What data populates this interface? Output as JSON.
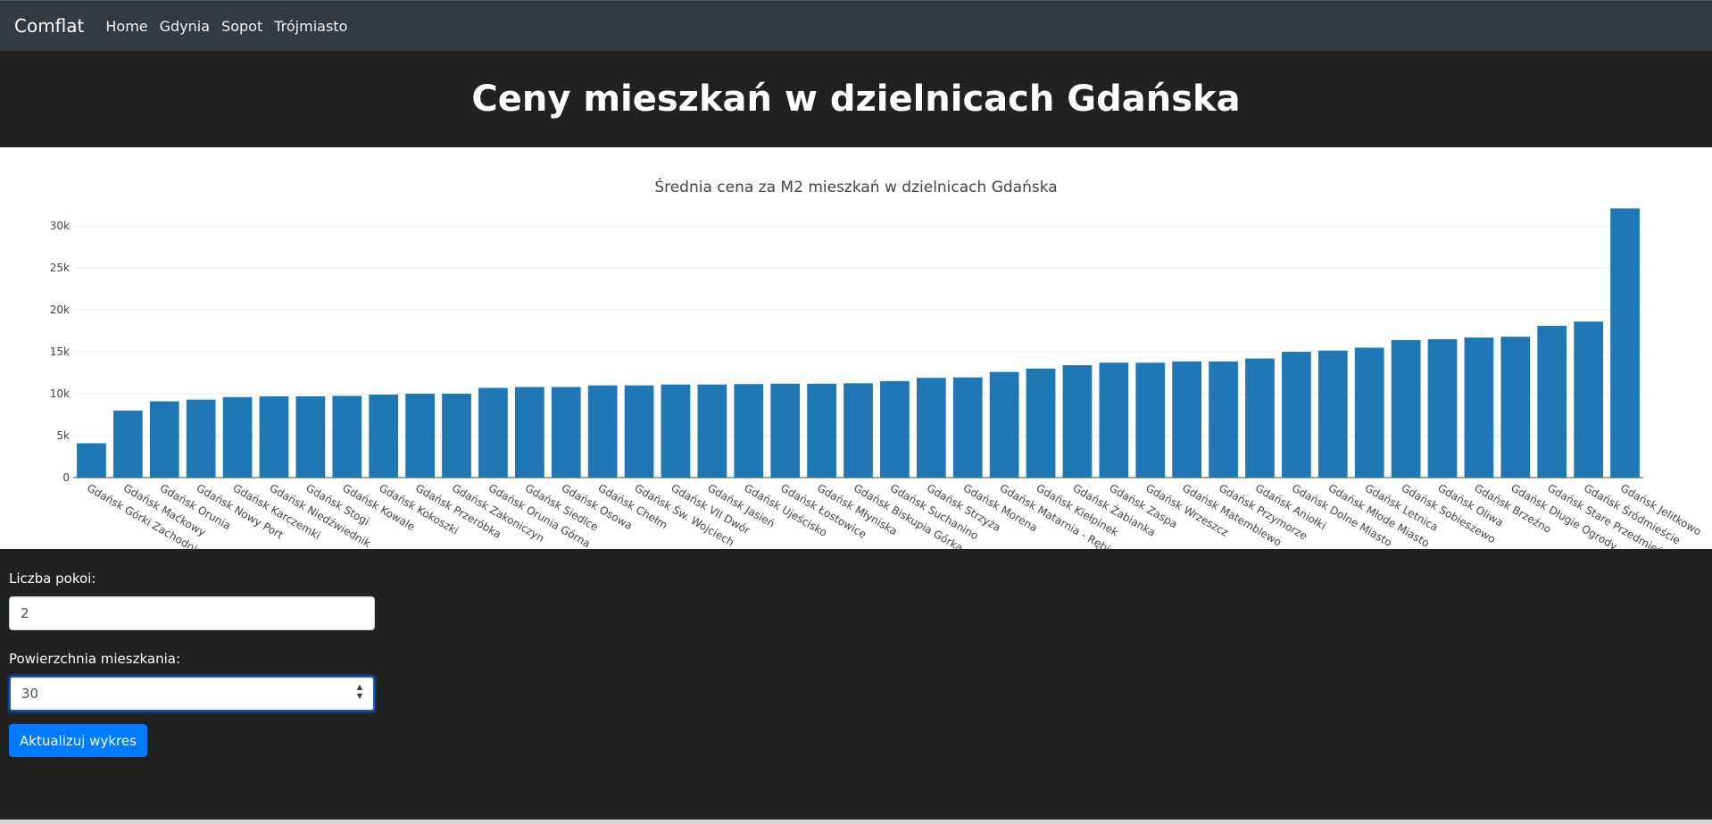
{
  "navbar": {
    "brand": "Comflat",
    "links": [
      "Home",
      "Gdynia",
      "Sopot",
      "Trójmiasto"
    ]
  },
  "hero": {
    "title": "Ceny mieszkań w dzielnicach Gdańska"
  },
  "form": {
    "rooms_label": "Liczba pokoi:",
    "rooms_value": "2",
    "area_label": "Powierzchnia mieszkania:",
    "area_value": "30",
    "submit_label": "Aktualizuj wykres"
  },
  "colors": {
    "bar": "#1f77b4",
    "accent": "#007bff"
  },
  "chart_data": {
    "type": "bar",
    "title": "Średnia cena za M2 mieszkań w dzielnicach Gdańska",
    "xlabel": "",
    "ylabel": "",
    "ylim": [
      0,
      33000
    ],
    "yticks": [
      0,
      5000,
      10000,
      15000,
      20000,
      25000,
      30000
    ],
    "ytick_labels": [
      "0",
      "5k",
      "10k",
      "15k",
      "20k",
      "25k",
      "30k"
    ],
    "grid": true,
    "categories": [
      "Gdańsk Górki Zachodnie",
      "Gdańsk Maćkowy",
      "Gdańsk Orunia",
      "Gdańsk Nowy Port",
      "Gdańsk Karczemki",
      "Gdańsk Niedźwiednik",
      "Gdańsk Stogi",
      "Gdańsk Kowale",
      "Gdańsk Kokoszki",
      "Gdańsk Przeróbka",
      "Gdańsk Zakoniczyn",
      "Gdańsk Orunia Górna",
      "Gdańsk Siedlce",
      "Gdańsk Osowa",
      "Gdańsk Chełm",
      "Gdańsk Św. Wojciech",
      "Gdańsk VII Dwór",
      "Gdańsk Jasień",
      "Gdańsk Ujeścisko",
      "Gdańsk Łostowice",
      "Gdańsk Młyniska",
      "Gdańsk Biskupia Górka",
      "Gdańsk Suchanino",
      "Gdańsk Strzyża",
      "Gdańsk Morena",
      "Gdańsk Matarnia - Rębiechowo",
      "Gdańsk Kiełpinek",
      "Gdańsk Żabianka",
      "Gdańsk Zaspa",
      "Gdańsk Wrzeszcz",
      "Gdańsk Matemblewo",
      "Gdańsk Przymorze",
      "Gdańsk Aniołki",
      "Gdańsk Dolne Miasto",
      "Gdańsk Młode Miasto",
      "Gdańsk Letnica",
      "Gdańsk Sobieszewo",
      "Gdańsk Oliwa",
      "Gdańsk Brzeźno",
      "Gdańsk Długie Ogrody",
      "Gdańsk Stare Przedmieście",
      "Gdańsk Śródmieście",
      "Gdańsk Jelitkowo"
    ],
    "values": [
      4100,
      8000,
      9100,
      9300,
      9600,
      9700,
      9700,
      9750,
      9900,
      10000,
      10000,
      10700,
      10800,
      10800,
      11000,
      11000,
      11100,
      11100,
      11150,
      11200,
      11200,
      11250,
      11500,
      11900,
      11950,
      12600,
      13000,
      13400,
      13700,
      13700,
      13850,
      13850,
      14200,
      15000,
      15150,
      15500,
      16400,
      16500,
      16700,
      16800,
      18100,
      18600,
      32100
    ]
  }
}
